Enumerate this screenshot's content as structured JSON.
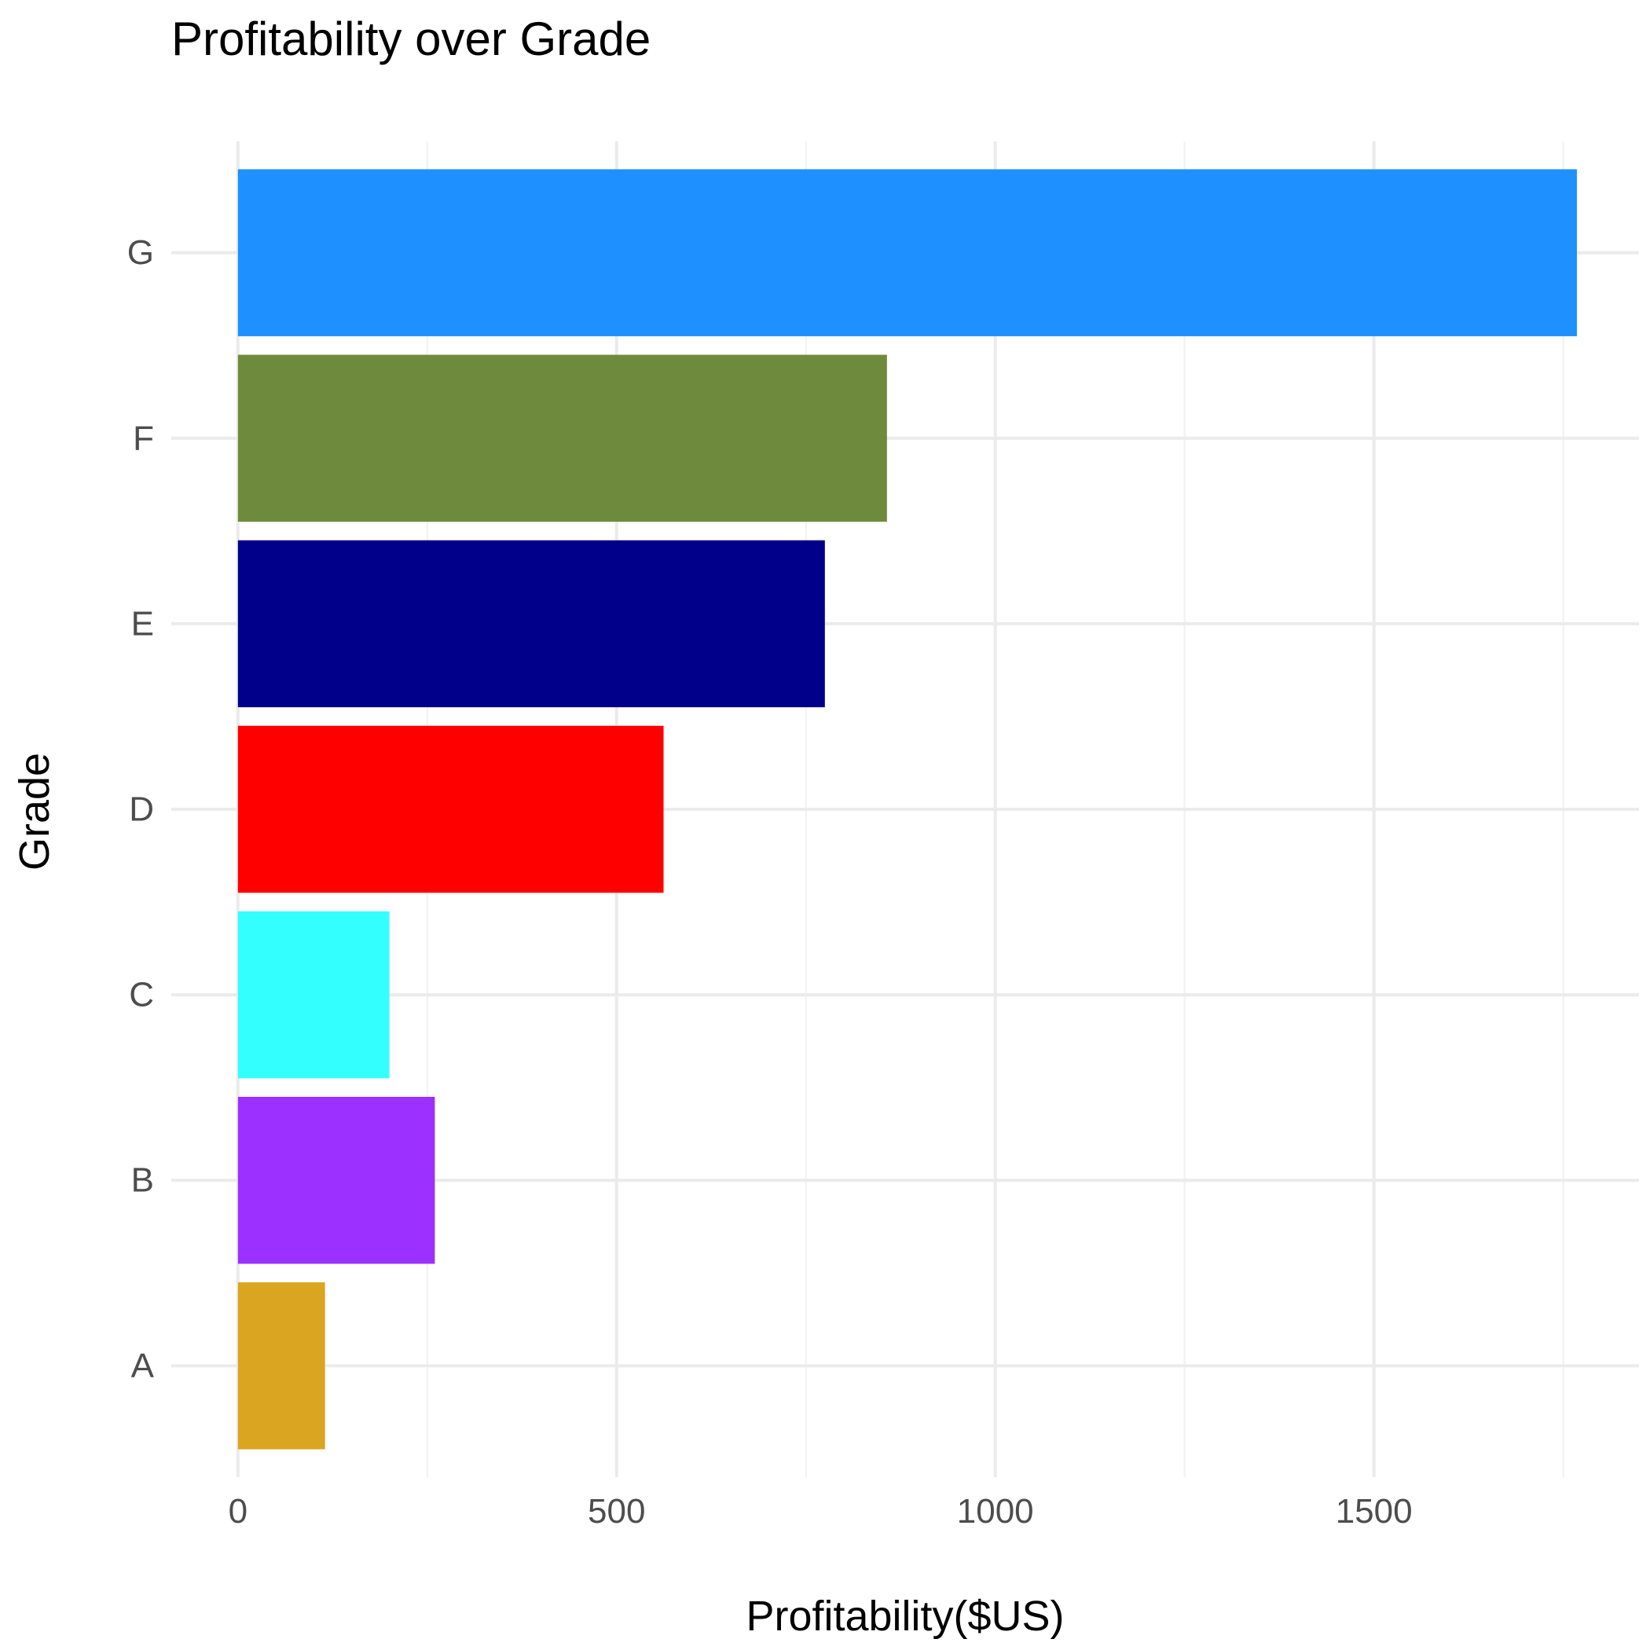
{
  "chart_data": {
    "type": "bar",
    "orientation": "horizontal",
    "title": "Profitability over Grade",
    "xlabel": "Profitability($US)",
    "ylabel": "Grade",
    "categories": [
      "A",
      "B",
      "C",
      "D",
      "E",
      "F",
      "G"
    ],
    "values": [
      115,
      260,
      200,
      562,
      775,
      857,
      1768
    ],
    "colors": [
      "#DAA520",
      "#9B30FF",
      "#33FFFF",
      "#FF0000",
      "#00008B",
      "#6E8B3D",
      "#1E90FF"
    ],
    "xlim": [
      -88,
      1850
    ],
    "xticks": [
      0,
      500,
      1000,
      1500
    ],
    "xtick_labels": [
      "0",
      "500",
      "1000",
      "1500"
    ],
    "grid": true,
    "legend": "none"
  }
}
